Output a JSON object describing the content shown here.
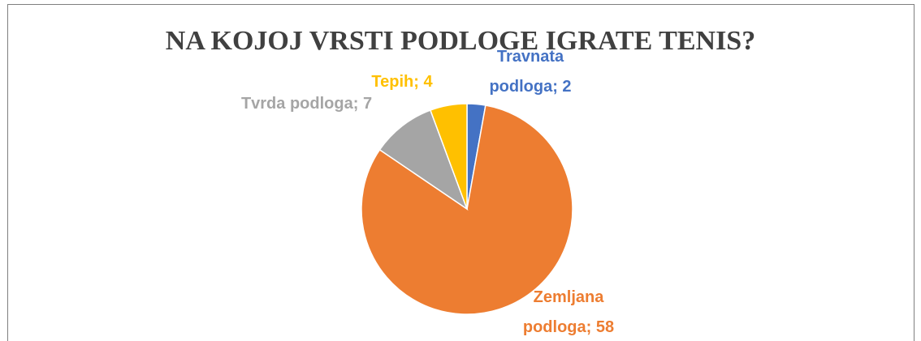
{
  "chart_data": {
    "type": "pie",
    "title": "NA KOJOJ VRSTI PODLOGE IGRATE TENIS?",
    "values": [
      2,
      58,
      7,
      4
    ],
    "value_labels": [
      "Travnata podloga; 2",
      "Zemljana podloga; 58",
      "Tvrda podloga; 7",
      "Tepih; 4"
    ],
    "colors": [
      "#4472c4",
      "#ed7d31",
      "#a5a5a5",
      "#ffc000"
    ]
  }
}
